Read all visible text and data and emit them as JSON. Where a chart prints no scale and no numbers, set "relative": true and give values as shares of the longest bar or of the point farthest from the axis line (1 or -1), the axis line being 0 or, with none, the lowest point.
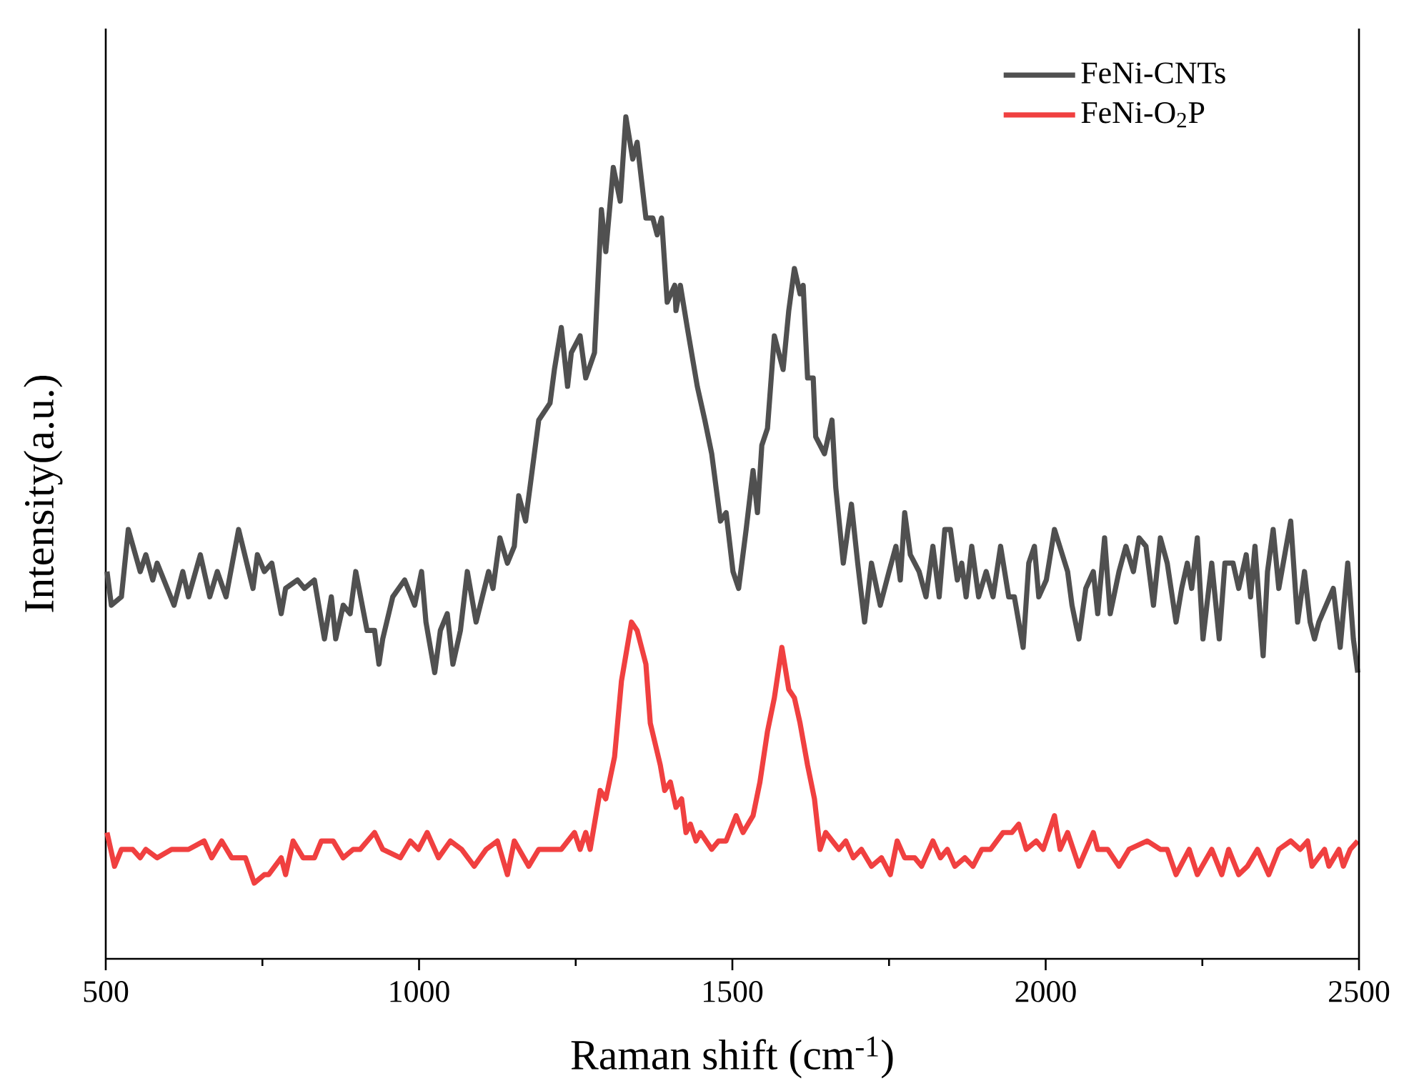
{
  "chart_data": {
    "type": "line",
    "xlabel": "Raman shift (cm$^{-1}$)",
    "ylabel": "Intensity(a.u.)",
    "relative": true,
    "xlim": [
      500,
      2500
    ],
    "xticks": [
      500,
      {
        "value": 750,
        "label": null
      },
      1000,
      {
        "value": 1250,
        "label": null
      },
      1500,
      {
        "value": 1750,
        "label": null
      },
      2000,
      {
        "value": 2250,
        "label": null
      },
      2500
    ],
    "legend": "top right",
    "marker": "none",
    "series": [
      {
        "name": "FeNi-CNTs",
        "color": "#505050",
        "x": [
          502,
          509,
          525,
          536,
          555,
          564,
          575,
          582,
          609,
          623,
          632,
          651,
          666,
          678,
          692,
          712,
          735,
          742,
          753,
          765,
          780,
          787,
          806,
          817,
          833,
          849,
          860,
          867,
          879,
          890,
          899,
          917,
          929,
          936,
          942,
          958,
          977,
          993,
          1004,
          1011,
          1025,
          1034,
          1045,
          1054,
          1066,
          1077,
          1091,
          1111,
          1118,
          1129,
          1141,
          1152,
          1159,
          1170,
          1191,
          1209,
          1216,
          1227,
          1237,
          1243,
          1257,
          1266,
          1280,
          1291,
          1298,
          1310,
          1321,
          1330,
          1341,
          1348,
          1362,
          1373,
          1380,
          1387,
          1396,
          1408,
          1410,
          1417,
          1428,
          1444,
          1456,
          1467,
          1481,
          1490,
          1501,
          1510,
          1522,
          1533,
          1540,
          1547,
          1556,
          1567,
          1581,
          1590,
          1599,
          1608,
          1613,
          1620,
          1629,
          1633,
          1647,
          1659,
          1665,
          1677,
          1690,
          1700,
          1711,
          1722,
          1736,
          1750,
          1761,
          1768,
          1775,
          1784,
          1798,
          1809,
          1820,
          1830,
          1839,
          1848,
          1859,
          1866,
          1873,
          1882,
          1893,
          1905,
          1916,
          1928,
          1941,
          1950,
          1964,
          1973,
          1982,
          1989,
          2001,
          2014,
          2035,
          2042,
          2053,
          2064,
          2076,
          2083,
          2094,
          2103,
          2117,
          2128,
          2140,
          2149,
          2160,
          2172,
          2183,
          2194,
          2208,
          2217,
          2226,
          2233,
          2242,
          2251,
          2265,
          2277,
          2286,
          2299,
          2308,
          2320,
          2327,
          2334,
          2347,
          2354,
          2363,
          2372,
          2391,
          2402,
          2413,
          2422,
          2429,
          2436,
          2459,
          2470,
          2482,
          2491,
          2498
        ],
        "values": [
          0.46,
          0.42,
          0.43,
          0.51,
          0.46,
          0.48,
          0.45,
          0.47,
          0.42,
          0.46,
          0.43,
          0.48,
          0.43,
          0.46,
          0.43,
          0.51,
          0.44,
          0.48,
          0.46,
          0.47,
          0.41,
          0.44,
          0.45,
          0.44,
          0.45,
          0.38,
          0.43,
          0.38,
          0.42,
          0.41,
          0.46,
          0.39,
          0.39,
          0.35,
          0.38,
          0.43,
          0.45,
          0.42,
          0.46,
          0.4,
          0.34,
          0.39,
          0.41,
          0.35,
          0.39,
          0.46,
          0.4,
          0.46,
          0.44,
          0.5,
          0.47,
          0.49,
          0.55,
          0.52,
          0.64,
          0.66,
          0.7,
          0.75,
          0.68,
          0.72,
          0.74,
          0.69,
          0.72,
          0.89,
          0.84,
          0.94,
          0.9,
          1.0,
          0.95,
          0.97,
          0.88,
          0.88,
          0.86,
          0.88,
          0.78,
          0.8,
          0.77,
          0.8,
          0.75,
          0.68,
          0.64,
          0.6,
          0.52,
          0.53,
          0.46,
          0.44,
          0.51,
          0.58,
          0.53,
          0.61,
          0.63,
          0.74,
          0.7,
          0.77,
          0.82,
          0.79,
          0.8,
          0.69,
          0.69,
          0.62,
          0.6,
          0.64,
          0.56,
          0.47,
          0.54,
          0.47,
          0.4,
          0.47,
          0.42,
          0.46,
          0.49,
          0.45,
          0.53,
          0.48,
          0.46,
          0.43,
          0.49,
          0.43,
          0.51,
          0.51,
          0.45,
          0.47,
          0.43,
          0.49,
          0.43,
          0.46,
          0.43,
          0.49,
          0.43,
          0.43,
          0.37,
          0.47,
          0.49,
          0.43,
          0.45,
          0.51,
          0.46,
          0.42,
          0.38,
          0.44,
          0.46,
          0.41,
          0.5,
          0.41,
          0.46,
          0.49,
          0.46,
          0.5,
          0.49,
          0.42,
          0.5,
          0.47,
          0.4,
          0.44,
          0.47,
          0.44,
          0.5,
          0.38,
          0.47,
          0.38,
          0.47,
          0.47,
          0.44,
          0.48,
          0.43,
          0.49,
          0.36,
          0.46,
          0.51,
          0.44,
          0.52,
          0.4,
          0.46,
          0.4,
          0.38,
          0.4,
          0.44,
          0.37,
          0.47,
          0.38,
          0.34
        ]
      },
      {
        "name": "FeNi-O$_{2}$P",
        "color": "#f04040",
        "x": [
          502,
          514,
          525,
          543,
          555,
          564,
          582,
          605,
          632,
          657,
          669,
          685,
          701,
          723,
          737,
          753,
          760,
          780,
          787,
          799,
          815,
          833,
          844,
          863,
          879,
          895,
          906,
          929,
          942,
          970,
          986,
          999,
          1013,
          1031,
          1050,
          1068,
          1088,
          1107,
          1125,
          1141,
          1152,
          1175,
          1191,
          1209,
          1227,
          1248,
          1257,
          1266,
          1273,
          1289,
          1298,
          1312,
          1323,
          1339,
          1348,
          1362,
          1369,
          1385,
          1392,
          1401,
          1410,
          1419,
          1426,
          1433,
          1442,
          1449,
          1467,
          1478,
          1490,
          1506,
          1517,
          1533,
          1544,
          1556,
          1567,
          1579,
          1590,
          1599,
          1608,
          1620,
          1631,
          1640,
          1649,
          1670,
          1681,
          1693,
          1706,
          1722,
          1738,
          1752,
          1763,
          1775,
          1791,
          1802,
          1820,
          1832,
          1843,
          1855,
          1871,
          1884,
          1898,
          1912,
          1932,
          1946,
          1957,
          1969,
          1985,
          1996,
          2014,
          2023,
          2035,
          2053,
          2076,
          2083,
          2099,
          2117,
          2133,
          2162,
          2183,
          2194,
          2208,
          2229,
          2242,
          2265,
          2281,
          2292,
          2308,
          2322,
          2338,
          2356,
          2372,
          2391,
          2406,
          2418,
          2425,
          2445,
          2452,
          2468,
          2475,
          2486,
          2498
        ],
        "values": [
          0.15,
          0.11,
          0.13,
          0.13,
          0.12,
          0.13,
          0.12,
          0.13,
          0.13,
          0.14,
          0.12,
          0.14,
          0.12,
          0.12,
          0.09,
          0.1,
          0.1,
          0.12,
          0.1,
          0.14,
          0.12,
          0.12,
          0.14,
          0.14,
          0.12,
          0.13,
          0.13,
          0.15,
          0.13,
          0.12,
          0.14,
          0.13,
          0.15,
          0.12,
          0.14,
          0.13,
          0.11,
          0.13,
          0.14,
          0.1,
          0.14,
          0.11,
          0.13,
          0.13,
          0.13,
          0.15,
          0.13,
          0.15,
          0.13,
          0.2,
          0.19,
          0.24,
          0.33,
          0.4,
          0.39,
          0.35,
          0.28,
          0.23,
          0.2,
          0.21,
          0.18,
          0.19,
          0.15,
          0.16,
          0.14,
          0.15,
          0.13,
          0.14,
          0.14,
          0.17,
          0.15,
          0.17,
          0.21,
          0.27,
          0.31,
          0.37,
          0.32,
          0.31,
          0.28,
          0.23,
          0.19,
          0.13,
          0.15,
          0.13,
          0.14,
          0.12,
          0.13,
          0.11,
          0.12,
          0.1,
          0.14,
          0.12,
          0.12,
          0.11,
          0.14,
          0.12,
          0.13,
          0.11,
          0.12,
          0.11,
          0.13,
          0.13,
          0.15,
          0.15,
          0.16,
          0.13,
          0.14,
          0.13,
          0.17,
          0.13,
          0.15,
          0.11,
          0.15,
          0.13,
          0.13,
          0.11,
          0.13,
          0.14,
          0.13,
          0.13,
          0.1,
          0.13,
          0.1,
          0.13,
          0.1,
          0.13,
          0.1,
          0.11,
          0.13,
          0.1,
          0.13,
          0.14,
          0.13,
          0.14,
          0.11,
          0.13,
          0.11,
          0.13,
          0.11,
          0.13,
          0.14
        ]
      }
    ]
  }
}
